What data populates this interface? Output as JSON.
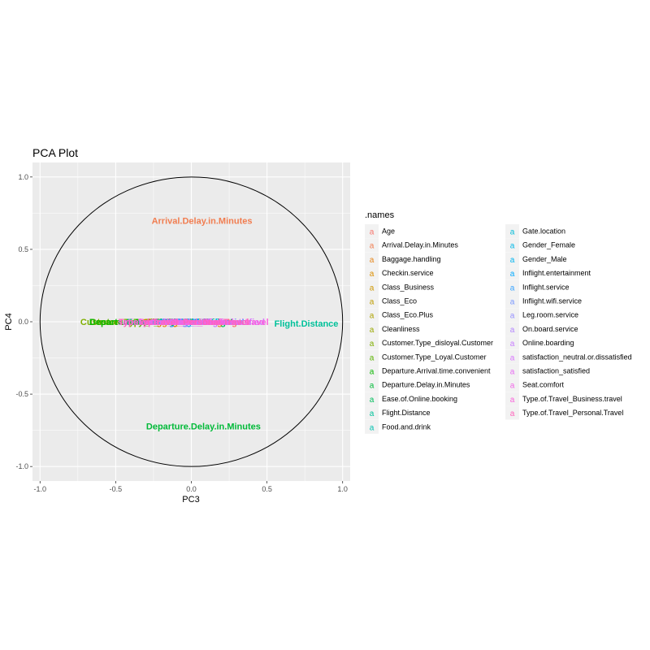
{
  "chart_data": {
    "type": "scatter",
    "title": "PCA Plot",
    "xlabel": "PC3",
    "ylabel": "PC4",
    "xlim": [
      -1.05,
      1.05
    ],
    "ylim": [
      -1.1,
      1.1
    ],
    "x_ticks": [
      "-1.0",
      "-0.5",
      "0.0",
      "0.5",
      "1.0"
    ],
    "y_ticks": [
      "1.0",
      "0.5",
      "0.0",
      "-0.5",
      "-1.0"
    ],
    "x_tick_values": [
      -1.0,
      -0.5,
      0.0,
      0.5,
      1.0
    ],
    "y_tick_values": [
      1.0,
      0.5,
      0.0,
      -0.5,
      -1.0
    ],
    "grid": true,
    "unit_circle": true,
    "legend_title": ".names",
    "legend_placement": "right",
    "legend_key_glyph": "a",
    "points": [
      {
        "label": "Age",
        "x": 0.28,
        "y": 0.0,
        "color": "#F8766D"
      },
      {
        "label": "Arrival.Delay.in.Minutes",
        "x": 0.07,
        "y": 0.7,
        "color": "#F17D50"
      },
      {
        "label": "Baggage.handling",
        "x": -0.05,
        "y": 0.0,
        "color": "#E7861B"
      },
      {
        "label": "Checkin.service",
        "x": -0.1,
        "y": 0.0,
        "color": "#DB8E00"
      },
      {
        "label": "Class_Business",
        "x": 0.02,
        "y": 0.0,
        "color": "#CE9700"
      },
      {
        "label": "Class_Eco",
        "x": -0.12,
        "y": 0.0,
        "color": "#BE9C00"
      },
      {
        "label": "Class_Eco.Plus",
        "x": -0.08,
        "y": 0.0,
        "color": "#AEA200"
      },
      {
        "label": "Cleanliness",
        "x": -0.15,
        "y": 0.0,
        "color": "#9AA800"
      },
      {
        "label": "Customer.Type_disloyal.Customer",
        "x": -0.25,
        "y": 0.0,
        "color": "#7FAE00"
      },
      {
        "label": "Customer.Type_Loyal.Customer",
        "x": -0.22,
        "y": 0.0,
        "color": "#5BB300"
      },
      {
        "label": "Departure.Arrival.time.convenient",
        "x": -0.2,
        "y": 0.0,
        "color": "#0CB702"
      },
      {
        "label": "Departure.Delay.in.Minutes",
        "x": 0.08,
        "y": -0.72,
        "color": "#00BA38"
      },
      {
        "label": "Ease.of.Online.booking",
        "x": -0.1,
        "y": 0.0,
        "color": "#00BD5C"
      },
      {
        "label": "Flight.Distance",
        "x": 0.76,
        "y": -0.01,
        "color": "#00C19A"
      },
      {
        "label": "Food.and.drink",
        "x": -0.05,
        "y": 0.0,
        "color": "#00C0AF"
      },
      {
        "label": "Gate.location",
        "x": -0.07,
        "y": 0.0,
        "color": "#00BCD8"
      },
      {
        "label": "Gender_Female",
        "x": 0.0,
        "y": 0.0,
        "color": "#00B8E7"
      },
      {
        "label": "Gender_Male",
        "x": 0.02,
        "y": 0.0,
        "color": "#00B4F0"
      },
      {
        "label": "Inflight.entertainment",
        "x": 0.05,
        "y": 0.0,
        "color": "#00A9FF"
      },
      {
        "label": "Inflight.service",
        "x": 0.07,
        "y": 0.0,
        "color": "#35A2FF"
      },
      {
        "label": "Inflight.wifi.service",
        "x": 0.1,
        "y": 0.0,
        "color": "#7997FF"
      },
      {
        "label": "Leg.room.service",
        "x": 0.12,
        "y": 0.0,
        "color": "#9590FF"
      },
      {
        "label": "On.board.service",
        "x": 0.1,
        "y": 0.0,
        "color": "#B385FF"
      },
      {
        "label": "Online.boarding",
        "x": -0.05,
        "y": 0.0,
        "color": "#C77CFF"
      },
      {
        "label": "satisfaction_neutral.or.dissatisfied",
        "x": 0.0,
        "y": 0.0,
        "color": "#D874FD"
      },
      {
        "label": "satisfaction_satisfied",
        "x": -0.02,
        "y": 0.0,
        "color": "#E76BF3"
      },
      {
        "label": "Seat.comfort",
        "x": 0.03,
        "y": 0.0,
        "color": "#F166E8"
      },
      {
        "label": "Type.of.Travel_Business.travel",
        "x": 0.08,
        "y": 0.0,
        "color": "#FA62DB"
      },
      {
        "label": "Type.of.Travel_Personal.Travel",
        "x": -0.05,
        "y": 0.0,
        "color": "#FF62BC"
      }
    ]
  }
}
